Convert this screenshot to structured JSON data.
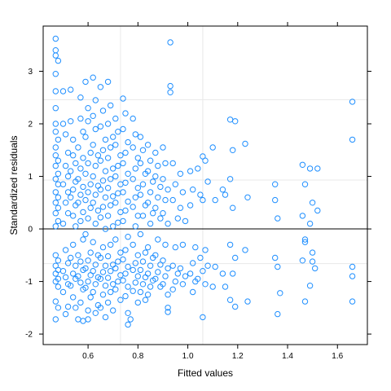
{
  "chart_data": {
    "type": "scatter",
    "title": "",
    "xlabel": "Fitted values",
    "ylabel": "Standardized residuals",
    "xlim": [
      0.42,
      1.72
    ],
    "ylim": [
      -2.2,
      3.86
    ],
    "x_ticks": [
      0.6,
      0.8,
      1.0,
      1.2,
      1.4,
      1.6
    ],
    "x_tick_labels": [
      "0.6",
      "0.8",
      "1.0",
      "1.2",
      "1.4",
      "1.6"
    ],
    "y_ticks": [
      -2,
      -1,
      0,
      1,
      2,
      3
    ],
    "y_tick_labels": [
      "-2",
      "-1",
      "0",
      "1",
      "2",
      "3"
    ],
    "grid": true,
    "grid_x": [
      0.73,
      1.06
    ],
    "grid_y": [
      -0.66,
      0.93,
      2.46
    ],
    "reference_line_y": 0,
    "marker": "open-circle",
    "colors": {
      "points": "#1f8fff",
      "grid": "#e8e8e8",
      "frame": "#000000",
      "reference_line": "#000000"
    },
    "points": [
      [
        0.47,
        3.62
      ],
      [
        0.47,
        3.4
      ],
      [
        0.47,
        3.3
      ],
      [
        0.48,
        3.2
      ],
      [
        0.47,
        2.95
      ],
      [
        0.47,
        2.62
      ],
      [
        0.5,
        2.62
      ],
      [
        0.47,
        2.3
      ],
      [
        0.47,
        2.0
      ],
      [
        0.47,
        1.85
      ],
      [
        0.48,
        1.7
      ],
      [
        0.47,
        1.55
      ],
      [
        0.47,
        1.4
      ],
      [
        0.48,
        1.3
      ],
      [
        0.47,
        1.2
      ],
      [
        0.48,
        1.05
      ],
      [
        0.47,
        0.95
      ],
      [
        0.48,
        0.85
      ],
      [
        0.47,
        0.7
      ],
      [
        0.48,
        0.6
      ],
      [
        0.47,
        0.5
      ],
      [
        0.48,
        0.4
      ],
      [
        0.47,
        0.3
      ],
      [
        0.48,
        0.15
      ],
      [
        0.47,
        0.05
      ],
      [
        0.47,
        -0.5
      ],
      [
        0.48,
        -0.6
      ],
      [
        0.47,
        -0.7
      ],
      [
        0.48,
        -0.78
      ],
      [
        0.47,
        -0.85
      ],
      [
        0.48,
        -0.95
      ],
      [
        0.47,
        -1.0
      ],
      [
        0.48,
        -1.1
      ],
      [
        0.47,
        -1.38
      ],
      [
        0.48,
        -1.5
      ],
      [
        0.47,
        -1.72
      ],
      [
        0.5,
        2.0
      ],
      [
        0.51,
        1.8
      ],
      [
        0.52,
        1.45
      ],
      [
        0.51,
        1.2
      ],
      [
        0.52,
        1.0
      ],
      [
        0.5,
        0.85
      ],
      [
        0.52,
        0.7
      ],
      [
        0.51,
        0.5
      ],
      [
        0.52,
        0.3
      ],
      [
        0.5,
        0.1
      ],
      [
        0.51,
        -0.4
      ],
      [
        0.52,
        -0.65
      ],
      [
        0.5,
        -0.8
      ],
      [
        0.51,
        -0.92
      ],
      [
        0.52,
        -1.05
      ],
      [
        0.5,
        -1.2
      ],
      [
        0.52,
        -1.48
      ],
      [
        0.51,
        -1.62
      ],
      [
        0.53,
        2.65
      ],
      [
        0.53,
        2.05
      ],
      [
        0.54,
        1.7
      ],
      [
        0.54,
        1.4
      ],
      [
        0.55,
        1.25
      ],
      [
        0.53,
        1.1
      ],
      [
        0.55,
        0.9
      ],
      [
        0.54,
        0.75
      ],
      [
        0.53,
        0.6
      ],
      [
        0.55,
        0.45
      ],
      [
        0.54,
        0.25
      ],
      [
        0.55,
        0.05
      ],
      [
        0.54,
        -0.3
      ],
      [
        0.53,
        -0.55
      ],
      [
        0.55,
        -0.7
      ],
      [
        0.54,
        -0.85
      ],
      [
        0.55,
        -0.95
      ],
      [
        0.53,
        -1.08
      ],
      [
        0.54,
        -1.3
      ],
      [
        0.55,
        -1.5
      ],
      [
        0.56,
        -1.72
      ],
      [
        0.57,
        2.5
      ],
      [
        0.57,
        2.1
      ],
      [
        0.58,
        1.85
      ],
      [
        0.56,
        1.55
      ],
      [
        0.58,
        1.35
      ],
      [
        0.57,
        1.15
      ],
      [
        0.56,
        0.95
      ],
      [
        0.58,
        0.8
      ],
      [
        0.57,
        0.65
      ],
      [
        0.56,
        0.5
      ],
      [
        0.58,
        0.32
      ],
      [
        0.57,
        0.15
      ],
      [
        0.58,
        -0.2
      ],
      [
        0.56,
        -0.5
      ],
      [
        0.57,
        -0.62
      ],
      [
        0.58,
        -0.78
      ],
      [
        0.56,
        -0.9
      ],
      [
        0.57,
        -1.02
      ],
      [
        0.58,
        -1.15
      ],
      [
        0.57,
        -1.4
      ],
      [
        0.58,
        -1.75
      ],
      [
        0.6,
        -1.72
      ],
      [
        0.59,
        2.8
      ],
      [
        0.6,
        2.3
      ],
      [
        0.6,
        2.05
      ],
      [
        0.59,
        1.75
      ],
      [
        0.61,
        1.45
      ],
      [
        0.6,
        1.25
      ],
      [
        0.59,
        1.05
      ],
      [
        0.61,
        0.85
      ],
      [
        0.6,
        0.7
      ],
      [
        0.59,
        0.55
      ],
      [
        0.61,
        0.4
      ],
      [
        0.6,
        0.2
      ],
      [
        0.59,
        -0.1
      ],
      [
        0.61,
        -0.45
      ],
      [
        0.6,
        -0.6
      ],
      [
        0.59,
        -0.75
      ],
      [
        0.61,
        -0.88
      ],
      [
        0.6,
        -1.0
      ],
      [
        0.59,
        -1.12
      ],
      [
        0.61,
        -1.3
      ],
      [
        0.6,
        -1.55
      ],
      [
        0.62,
        2.88
      ],
      [
        0.63,
        2.45
      ],
      [
        0.62,
        2.15
      ],
      [
        0.63,
        1.9
      ],
      [
        0.62,
        1.6
      ],
      [
        0.64,
        1.4
      ],
      [
        0.63,
        1.2
      ],
      [
        0.62,
        1.0
      ],
      [
        0.64,
        0.82
      ],
      [
        0.63,
        0.65
      ],
      [
        0.62,
        0.5
      ],
      [
        0.64,
        0.35
      ],
      [
        0.63,
        0.1
      ],
      [
        0.62,
        -0.25
      ],
      [
        0.64,
        -0.5
      ],
      [
        0.63,
        -0.68
      ],
      [
        0.62,
        -0.8
      ],
      [
        0.64,
        -0.92
      ],
      [
        0.63,
        -1.05
      ],
      [
        0.62,
        -1.2
      ],
      [
        0.64,
        -1.45
      ],
      [
        0.63,
        -1.6
      ],
      [
        0.65,
        2.7
      ],
      [
        0.66,
        2.25
      ],
      [
        0.65,
        1.95
      ],
      [
        0.67,
        1.7
      ],
      [
        0.66,
        1.5
      ],
      [
        0.65,
        1.3
      ],
      [
        0.67,
        1.1
      ],
      [
        0.66,
        0.92
      ],
      [
        0.65,
        0.75
      ],
      [
        0.67,
        0.6
      ],
      [
        0.66,
        0.42
      ],
      [
        0.65,
        0.22
      ],
      [
        0.67,
        0.0
      ],
      [
        0.66,
        -0.35
      ],
      [
        0.65,
        -0.55
      ],
      [
        0.67,
        -0.7
      ],
      [
        0.66,
        -0.82
      ],
      [
        0.65,
        -0.95
      ],
      [
        0.67,
        -1.08
      ],
      [
        0.66,
        -1.25
      ],
      [
        0.65,
        -1.5
      ],
      [
        0.67,
        -1.68
      ],
      [
        0.68,
        2.8
      ],
      [
        0.69,
        2.35
      ],
      [
        0.68,
        2.0
      ],
      [
        0.7,
        1.75
      ],
      [
        0.69,
        1.55
      ],
      [
        0.68,
        1.35
      ],
      [
        0.7,
        1.15
      ],
      [
        0.69,
        0.95
      ],
      [
        0.68,
        0.78
      ],
      [
        0.7,
        0.62
      ],
      [
        0.69,
        0.45
      ],
      [
        0.68,
        0.25
      ],
      [
        0.7,
        0.05
      ],
      [
        0.69,
        -0.3
      ],
      [
        0.68,
        -0.52
      ],
      [
        0.7,
        -0.68
      ],
      [
        0.69,
        -0.8
      ],
      [
        0.68,
        -0.93
      ],
      [
        0.7,
        -1.05
      ],
      [
        0.69,
        -1.2
      ],
      [
        0.68,
        -1.4
      ],
      [
        0.7,
        -1.55
      ],
      [
        0.71,
        2.1
      ],
      [
        0.72,
        1.85
      ],
      [
        0.71,
        1.6
      ],
      [
        0.73,
        1.4
      ],
      [
        0.72,
        1.2
      ],
      [
        0.71,
        1.0
      ],
      [
        0.73,
        0.85
      ],
      [
        0.72,
        0.68
      ],
      [
        0.71,
        0.5
      ],
      [
        0.73,
        0.32
      ],
      [
        0.72,
        0.12
      ],
      [
        0.71,
        -0.2
      ],
      [
        0.73,
        -0.45
      ],
      [
        0.72,
        -0.62
      ],
      [
        0.71,
        -0.75
      ],
      [
        0.73,
        -0.88
      ],
      [
        0.72,
        -1.0
      ],
      [
        0.71,
        -1.15
      ],
      [
        0.73,
        -1.35
      ],
      [
        0.74,
        2.48
      ],
      [
        0.75,
        2.2
      ],
      [
        0.74,
        1.9
      ],
      [
        0.76,
        1.65
      ],
      [
        0.75,
        1.45
      ],
      [
        0.74,
        1.25
      ],
      [
        0.76,
        1.05
      ],
      [
        0.75,
        0.88
      ],
      [
        0.74,
        0.7
      ],
      [
        0.76,
        0.52
      ],
      [
        0.75,
        0.35
      ],
      [
        0.74,
        0.15
      ],
      [
        0.76,
        -0.15
      ],
      [
        0.75,
        -0.4
      ],
      [
        0.74,
        -0.58
      ],
      [
        0.76,
        -0.72
      ],
      [
        0.75,
        -0.85
      ],
      [
        0.74,
        -0.98
      ],
      [
        0.76,
        -1.1
      ],
      [
        0.75,
        -1.28
      ],
      [
        0.76,
        -1.6
      ],
      [
        0.77,
        -1.72
      ],
      [
        0.76,
        -1.82
      ],
      [
        0.78,
        2.1
      ],
      [
        0.79,
        1.8
      ],
      [
        0.78,
        1.55
      ],
      [
        0.8,
        1.35
      ],
      [
        0.79,
        1.15
      ],
      [
        0.78,
        0.95
      ],
      [
        0.8,
        0.78
      ],
      [
        0.79,
        0.6
      ],
      [
        0.78,
        0.42
      ],
      [
        0.8,
        0.25
      ],
      [
        0.79,
        0.05
      ],
      [
        0.78,
        -0.3
      ],
      [
        0.8,
        -0.5
      ],
      [
        0.79,
        -0.65
      ],
      [
        0.78,
        -0.78
      ],
      [
        0.8,
        -0.9
      ],
      [
        0.79,
        -1.02
      ],
      [
        0.78,
        -1.18
      ],
      [
        0.8,
        -1.4
      ],
      [
        0.81,
        1.75
      ],
      [
        0.82,
        1.5
      ],
      [
        0.81,
        1.25
      ],
      [
        0.83,
        1.05
      ],
      [
        0.82,
        0.85
      ],
      [
        0.81,
        0.65
      ],
      [
        0.83,
        0.45
      ],
      [
        0.82,
        0.25
      ],
      [
        0.81,
        -0.1
      ],
      [
        0.83,
        -0.45
      ],
      [
        0.82,
        -0.62
      ],
      [
        0.81,
        -0.78
      ],
      [
        0.83,
        -0.92
      ],
      [
        0.82,
        -1.05
      ],
      [
        0.81,
        -1.2
      ],
      [
        0.83,
        -1.35
      ],
      [
        0.84,
        1.6
      ],
      [
        0.85,
        1.3
      ],
      [
        0.84,
        1.1
      ],
      [
        0.86,
        0.9
      ],
      [
        0.85,
        0.7
      ],
      [
        0.84,
        0.5
      ],
      [
        0.86,
        0.3
      ],
      [
        0.85,
        0.1
      ],
      [
        0.84,
        -0.35
      ],
      [
        0.86,
        -0.55
      ],
      [
        0.85,
        -0.7
      ],
      [
        0.84,
        -0.85
      ],
      [
        0.86,
        -0.98
      ],
      [
        0.85,
        -1.1
      ],
      [
        0.84,
        -1.25
      ],
      [
        0.87,
        1.45
      ],
      [
        0.88,
        1.2
      ],
      [
        0.87,
        1.0
      ],
      [
        0.89,
        0.8
      ],
      [
        0.88,
        0.6
      ],
      [
        0.87,
        0.4
      ],
      [
        0.89,
        0.2
      ],
      [
        0.88,
        -0.2
      ],
      [
        0.87,
        -0.5
      ],
      [
        0.89,
        -0.68
      ],
      [
        0.88,
        -0.82
      ],
      [
        0.87,
        -0.95
      ],
      [
        0.89,
        -1.1
      ],
      [
        0.9,
        1.55
      ],
      [
        0.91,
        1.25
      ],
      [
        0.9,
        0.95
      ],
      [
        0.92,
        0.75
      ],
      [
        0.91,
        0.55
      ],
      [
        0.9,
        0.3
      ],
      [
        0.92,
        0.1
      ],
      [
        0.91,
        -0.3
      ],
      [
        0.9,
        -0.6
      ],
      [
        0.92,
        -0.75
      ],
      [
        0.91,
        -0.9
      ],
      [
        0.9,
        -1.05
      ],
      [
        0.92,
        -1.25
      ],
      [
        0.92,
        -1.5
      ],
      [
        0.92,
        -1.58
      ],
      [
        0.93,
        3.55
      ],
      [
        0.93,
        2.72
      ],
      [
        0.93,
        2.6
      ],
      [
        0.94,
        1.25
      ],
      [
        0.95,
        0.85
      ],
      [
        0.94,
        0.55
      ],
      [
        0.96,
        0.2
      ],
      [
        0.95,
        -0.35
      ],
      [
        0.94,
        -0.7
      ],
      [
        0.96,
        -0.85
      ],
      [
        0.95,
        -1.0
      ],
      [
        0.94,
        -1.15
      ],
      [
        0.97,
        1.05
      ],
      [
        0.98,
        0.7
      ],
      [
        0.97,
        0.4
      ],
      [
        0.99,
        0.15
      ],
      [
        0.98,
        -0.3
      ],
      [
        0.97,
        -0.75
      ],
      [
        0.99,
        -0.9
      ],
      [
        0.98,
        -1.05
      ],
      [
        1.01,
        1.1
      ],
      [
        1.02,
        0.75
      ],
      [
        1.01,
        0.45
      ],
      [
        1.03,
        -0.35
      ],
      [
        1.02,
        -0.65
      ],
      [
        1.01,
        -0.85
      ],
      [
        1.03,
        -1.0
      ],
      [
        1.02,
        -1.2
      ],
      [
        1.04,
        1.15
      ],
      [
        1.05,
        0.65
      ],
      [
        1.06,
        0.55
      ],
      [
        1.05,
        -0.55
      ],
      [
        1.06,
        -0.8
      ],
      [
        1.04,
        -0.95
      ],
      [
        1.07,
        1.3
      ],
      [
        1.06,
        1.38
      ],
      [
        1.08,
        0.9
      ],
      [
        1.07,
        -0.4
      ],
      [
        1.08,
        -0.7
      ],
      [
        1.07,
        -1.05
      ],
      [
        1.06,
        -1.68
      ],
      [
        1.1,
        1.55
      ],
      [
        1.11,
        0.55
      ],
      [
        1.11,
        -0.72
      ],
      [
        1.1,
        -1.1
      ],
      [
        1.14,
        0.75
      ],
      [
        1.15,
        0.65
      ],
      [
        1.14,
        -0.85
      ],
      [
        1.15,
        -1.1
      ],
      [
        1.17,
        2.08
      ],
      [
        1.18,
        1.5
      ],
      [
        1.19,
        2.05
      ],
      [
        1.17,
        0.95
      ],
      [
        1.18,
        0.4
      ],
      [
        1.17,
        -0.3
      ],
      [
        1.19,
        -0.55
      ],
      [
        1.18,
        -0.85
      ],
      [
        1.17,
        -1.35
      ],
      [
        1.19,
        -1.48
      ],
      [
        1.23,
        1.62
      ],
      [
        1.24,
        0.6
      ],
      [
        1.23,
        -0.4
      ],
      [
        1.24,
        -1.38
      ],
      [
        1.35,
        0.85
      ],
      [
        1.35,
        0.55
      ],
      [
        1.36,
        0.2
      ],
      [
        1.35,
        -0.55
      ],
      [
        1.36,
        -0.72
      ],
      [
        1.37,
        -1.22
      ],
      [
        1.36,
        -1.62
      ],
      [
        1.46,
        1.22
      ],
      [
        1.47,
        0.85
      ],
      [
        1.46,
        0.25
      ],
      [
        1.47,
        -0.2
      ],
      [
        1.47,
        -0.25
      ],
      [
        1.46,
        -0.6
      ],
      [
        1.47,
        -1.38
      ],
      [
        1.49,
        1.15
      ],
      [
        1.5,
        0.5
      ],
      [
        1.49,
        0.1
      ],
      [
        1.5,
        -0.45
      ],
      [
        1.5,
        -0.62
      ],
      [
        1.49,
        -1.08
      ],
      [
        1.52,
        1.15
      ],
      [
        1.52,
        0.35
      ],
      [
        1.51,
        -0.75
      ],
      [
        1.66,
        2.42
      ],
      [
        1.66,
        1.7
      ],
      [
        1.66,
        -0.72
      ],
      [
        1.66,
        -0.9
      ],
      [
        1.66,
        -1.38
      ]
    ]
  }
}
